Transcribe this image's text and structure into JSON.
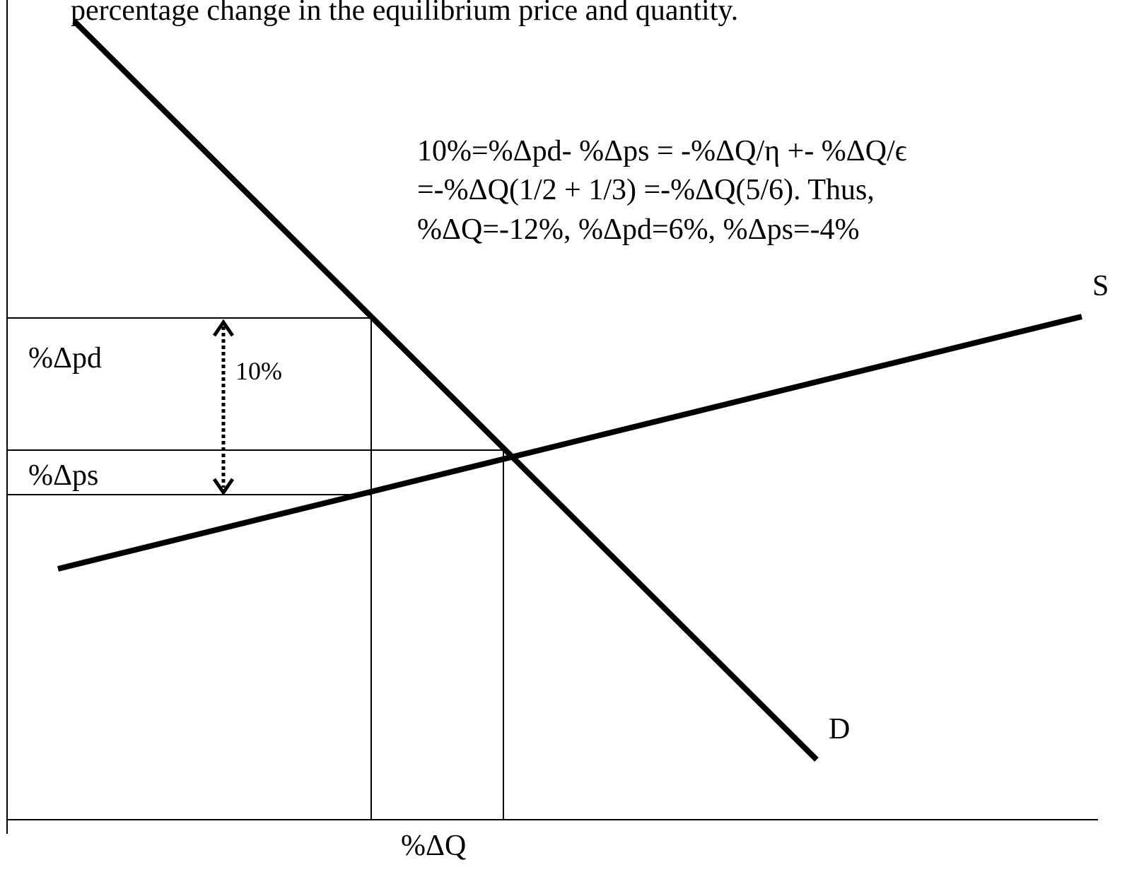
{
  "header": {
    "text": "percentage change in the equilibrium price and quantity."
  },
  "equation": {
    "lines": [
      "10%=%Δpd- %Δps = -%ΔQ/η +- %ΔQ/ϵ",
      "=-%ΔQ(1/2 + 1/3) =-%ΔQ(5/6).  Thus,",
      "%ΔQ=-12%, %Δpd=6%, %Δps=-4%"
    ]
  },
  "labels": {
    "pd": "%Δpd",
    "ps": "%Δps",
    "gap": "10%",
    "supply": "S",
    "demand": "D",
    "quantity": "%ΔQ"
  }
}
